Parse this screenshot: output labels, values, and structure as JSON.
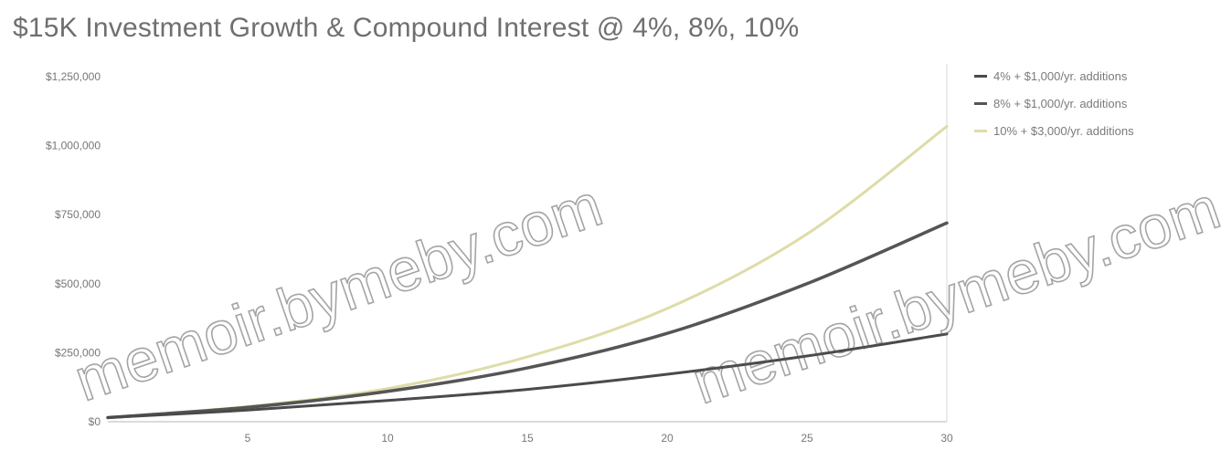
{
  "title": "$15K Investment Growth & Compound Interest @ 4%, 8%, 10%",
  "watermark": "memoir.bymeby.com",
  "chart_data": {
    "type": "line",
    "title": "$15K Investment Growth & Compound Interest @ 4%, 8%, 10%",
    "xlabel": "",
    "ylabel": "",
    "xlim": [
      0,
      30
    ],
    "ylim": [
      0,
      1250000
    ],
    "x_ticks": [
      5,
      10,
      15,
      20,
      25,
      30
    ],
    "y_ticks": [
      0,
      250000,
      500000,
      750000,
      1000000,
      1250000
    ],
    "y_tick_labels": [
      "$0",
      "$250,000",
      "$500,000",
      "$750,000",
      "$1,000,000",
      "$1,250,000"
    ],
    "grid": false,
    "legend_position": "top-right",
    "x": [
      0,
      5,
      10,
      15,
      20,
      25,
      30
    ],
    "series": [
      {
        "name": "4% + $1,000/yr. additions",
        "color": "#4a4a4a",
        "values": [
          15000,
          42000,
          77000,
          117000,
          172000,
          238000,
          318000
        ]
      },
      {
        "name": "8% + $1,000/yr. additions",
        "color": "#555555",
        "values": [
          15000,
          52000,
          110000,
          195000,
          320000,
          500000,
          720000
        ]
      },
      {
        "name": "10% + $3,000/yr. additions",
        "color": "#dedca8",
        "values": [
          15000,
          55000,
          120000,
          235000,
          410000,
          680000,
          1070000
        ]
      }
    ]
  }
}
